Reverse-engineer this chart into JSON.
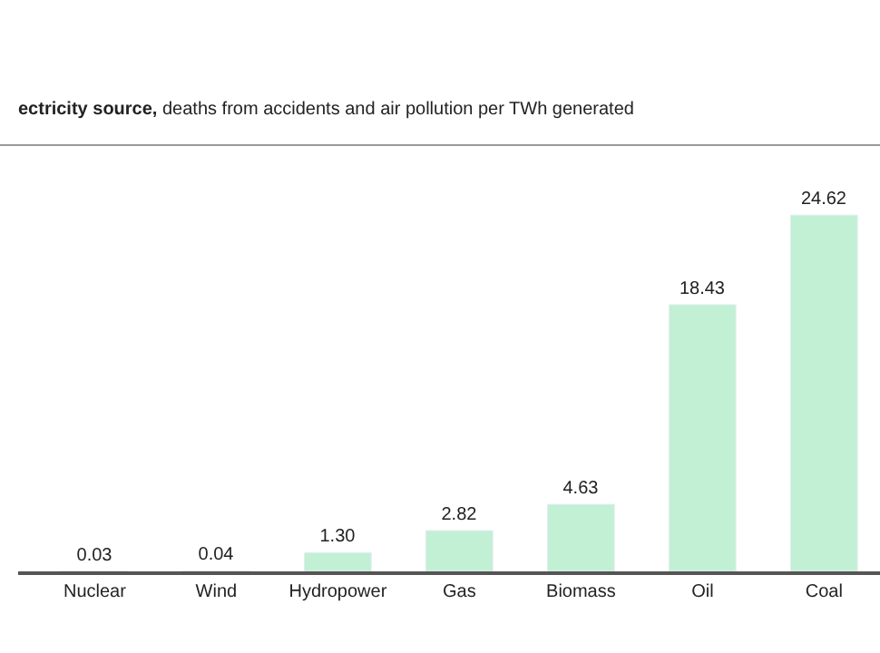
{
  "chart_data": {
    "type": "bar",
    "title": "ectricity source,",
    "subtitle": "deaths from accidents and air pollution per TWh generated",
    "categories": [
      "Nuclear",
      "Wind",
      "Hydropower",
      "Gas",
      "Biomass",
      "Oil",
      "Coal"
    ],
    "values": [
      0.03,
      0.04,
      1.3,
      2.82,
      4.63,
      18.43,
      24.62
    ],
    "value_labels": [
      "0.03",
      "0.04",
      "1.30",
      "2.82",
      "4.63",
      "18.43",
      "24.62"
    ],
    "color": "#c2f0d4"
  }
}
